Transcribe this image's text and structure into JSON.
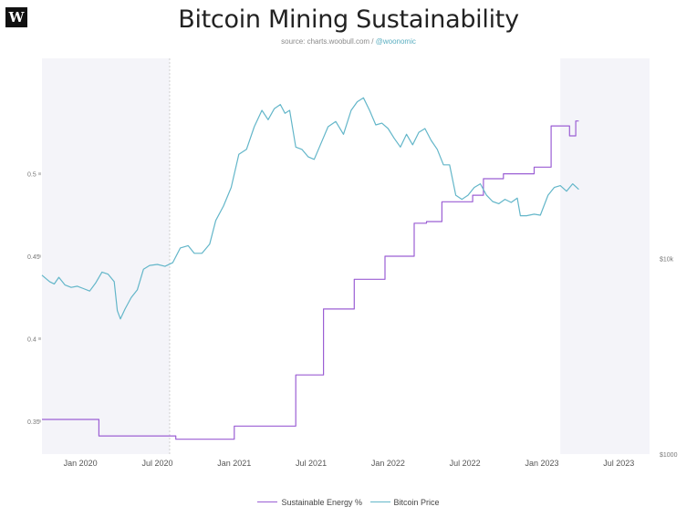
{
  "logo": {
    "text": "W"
  },
  "header": {
    "title": "Bitcoin Mining Sustainability",
    "source_prefix": "source: charts.woobull.com / ",
    "source_handle": "@woonomic"
  },
  "colors": {
    "energy": "#9b5fd4",
    "price": "#63b6c9",
    "axis_text": "#777777",
    "shade": "#f4f4f9",
    "marker": "#c8c8c8"
  },
  "legend": {
    "energy_label": "Sustainable Energy %",
    "price_label": "Bitcoin Price"
  },
  "chart_data": {
    "type": "line",
    "title": "Bitcoin Mining Sustainability",
    "x_ticks": [
      {
        "label": "Jan 2020",
        "t": 2020.0
      },
      {
        "label": "Jul 2020",
        "t": 2020.5
      },
      {
        "label": "Jan 2021",
        "t": 2021.0
      },
      {
        "label": "Jul 2021",
        "t": 2021.5
      },
      {
        "label": "Jan 2022",
        "t": 2022.0
      },
      {
        "label": "Jul 2022",
        "t": 2022.5
      },
      {
        "label": "Jan 2023",
        "t": 2023.0
      },
      {
        "label": "Jul 2023",
        "t": 2023.5
      }
    ],
    "xlim": [
      2019.75,
      2023.7
    ],
    "y_left": {
      "ticks": [
        "0.35",
        "0.4",
        "0.45",
        "0.5"
      ],
      "tick_values": [
        0.35,
        0.4,
        0.45,
        0.5
      ],
      "ylim": [
        0.33,
        0.57
      ]
    },
    "y_right": {
      "scale": "log",
      "ticks": [
        "$1000",
        "$10k"
      ],
      "tick_values": [
        1000,
        10000
      ],
      "ylim": [
        1000,
        105000
      ]
    },
    "shaded_ranges": [
      [
        2019.75,
        2020.58
      ],
      [
        2023.12,
        2023.7
      ]
    ],
    "marker_line_t": 2020.58,
    "series": [
      {
        "name": "Sustainable Energy %",
        "axis": "left",
        "step": true,
        "points": [
          [
            2019.75,
            0.351
          ],
          [
            2020.12,
            0.341
          ],
          [
            2020.62,
            0.339
          ],
          [
            2021.0,
            0.347
          ],
          [
            2021.4,
            0.378
          ],
          [
            2021.58,
            0.418
          ],
          [
            2021.78,
            0.436
          ],
          [
            2021.98,
            0.45
          ],
          [
            2022.17,
            0.47
          ],
          [
            2022.25,
            0.471
          ],
          [
            2022.35,
            0.483
          ],
          [
            2022.55,
            0.487
          ],
          [
            2022.62,
            0.497
          ],
          [
            2022.75,
            0.5
          ],
          [
            2022.95,
            0.504
          ],
          [
            2023.06,
            0.529
          ],
          [
            2023.18,
            0.523
          ],
          [
            2023.22,
            0.532
          ],
          [
            2023.24,
            0.532
          ]
        ]
      },
      {
        "name": "Bitcoin Price",
        "axis": "right",
        "step": false,
        "points": [
          [
            2019.75,
            8200
          ],
          [
            2019.8,
            7600
          ],
          [
            2019.83,
            7400
          ],
          [
            2019.86,
            8000
          ],
          [
            2019.9,
            7300
          ],
          [
            2019.94,
            7100
          ],
          [
            2019.98,
            7200
          ],
          [
            2020.02,
            7000
          ],
          [
            2020.06,
            6800
          ],
          [
            2020.1,
            7500
          ],
          [
            2020.14,
            8500
          ],
          [
            2020.18,
            8300
          ],
          [
            2020.22,
            7600
          ],
          [
            2020.24,
            5400
          ],
          [
            2020.26,
            4900
          ],
          [
            2020.29,
            5500
          ],
          [
            2020.33,
            6300
          ],
          [
            2020.37,
            6900
          ],
          [
            2020.41,
            8800
          ],
          [
            2020.45,
            9200
          ],
          [
            2020.5,
            9300
          ],
          [
            2020.55,
            9100
          ],
          [
            2020.6,
            9500
          ],
          [
            2020.65,
            11300
          ],
          [
            2020.7,
            11600
          ],
          [
            2020.74,
            10600
          ],
          [
            2020.79,
            10600
          ],
          [
            2020.84,
            11800
          ],
          [
            2020.88,
            15600
          ],
          [
            2020.93,
            18500
          ],
          [
            2020.98,
            23000
          ],
          [
            2021.03,
            34000
          ],
          [
            2021.08,
            36000
          ],
          [
            2021.13,
            47000
          ],
          [
            2021.18,
            57000
          ],
          [
            2021.22,
            51000
          ],
          [
            2021.26,
            58000
          ],
          [
            2021.3,
            61000
          ],
          [
            2021.33,
            55000
          ],
          [
            2021.36,
            57000
          ],
          [
            2021.4,
            37000
          ],
          [
            2021.44,
            36000
          ],
          [
            2021.48,
            33000
          ],
          [
            2021.52,
            32000
          ],
          [
            2021.56,
            38000
          ],
          [
            2021.61,
            47000
          ],
          [
            2021.66,
            50000
          ],
          [
            2021.71,
            43000
          ],
          [
            2021.76,
            57000
          ],
          [
            2021.8,
            63000
          ],
          [
            2021.84,
            66000
          ],
          [
            2021.88,
            57000
          ],
          [
            2021.92,
            48000
          ],
          [
            2021.96,
            49000
          ],
          [
            2022.0,
            46000
          ],
          [
            2022.04,
            41000
          ],
          [
            2022.08,
            37000
          ],
          [
            2022.12,
            43000
          ],
          [
            2022.16,
            38000
          ],
          [
            2022.2,
            44000
          ],
          [
            2022.24,
            46000
          ],
          [
            2022.28,
            40000
          ],
          [
            2022.32,
            36000
          ],
          [
            2022.36,
            30000
          ],
          [
            2022.4,
            30000
          ],
          [
            2022.44,
            21000
          ],
          [
            2022.48,
            20000
          ],
          [
            2022.52,
            21000
          ],
          [
            2022.56,
            23000
          ],
          [
            2022.6,
            24000
          ],
          [
            2022.64,
            21000
          ],
          [
            2022.68,
            19500
          ],
          [
            2022.72,
            19000
          ],
          [
            2022.76,
            20000
          ],
          [
            2022.8,
            19300
          ],
          [
            2022.84,
            20300
          ],
          [
            2022.86,
            16500
          ],
          [
            2022.9,
            16500
          ],
          [
            2022.95,
            16800
          ],
          [
            2022.99,
            16600
          ],
          [
            2023.04,
            21000
          ],
          [
            2023.08,
            23000
          ],
          [
            2023.12,
            23500
          ],
          [
            2023.16,
            22000
          ],
          [
            2023.2,
            24000
          ],
          [
            2023.24,
            22500
          ]
        ]
      }
    ]
  }
}
